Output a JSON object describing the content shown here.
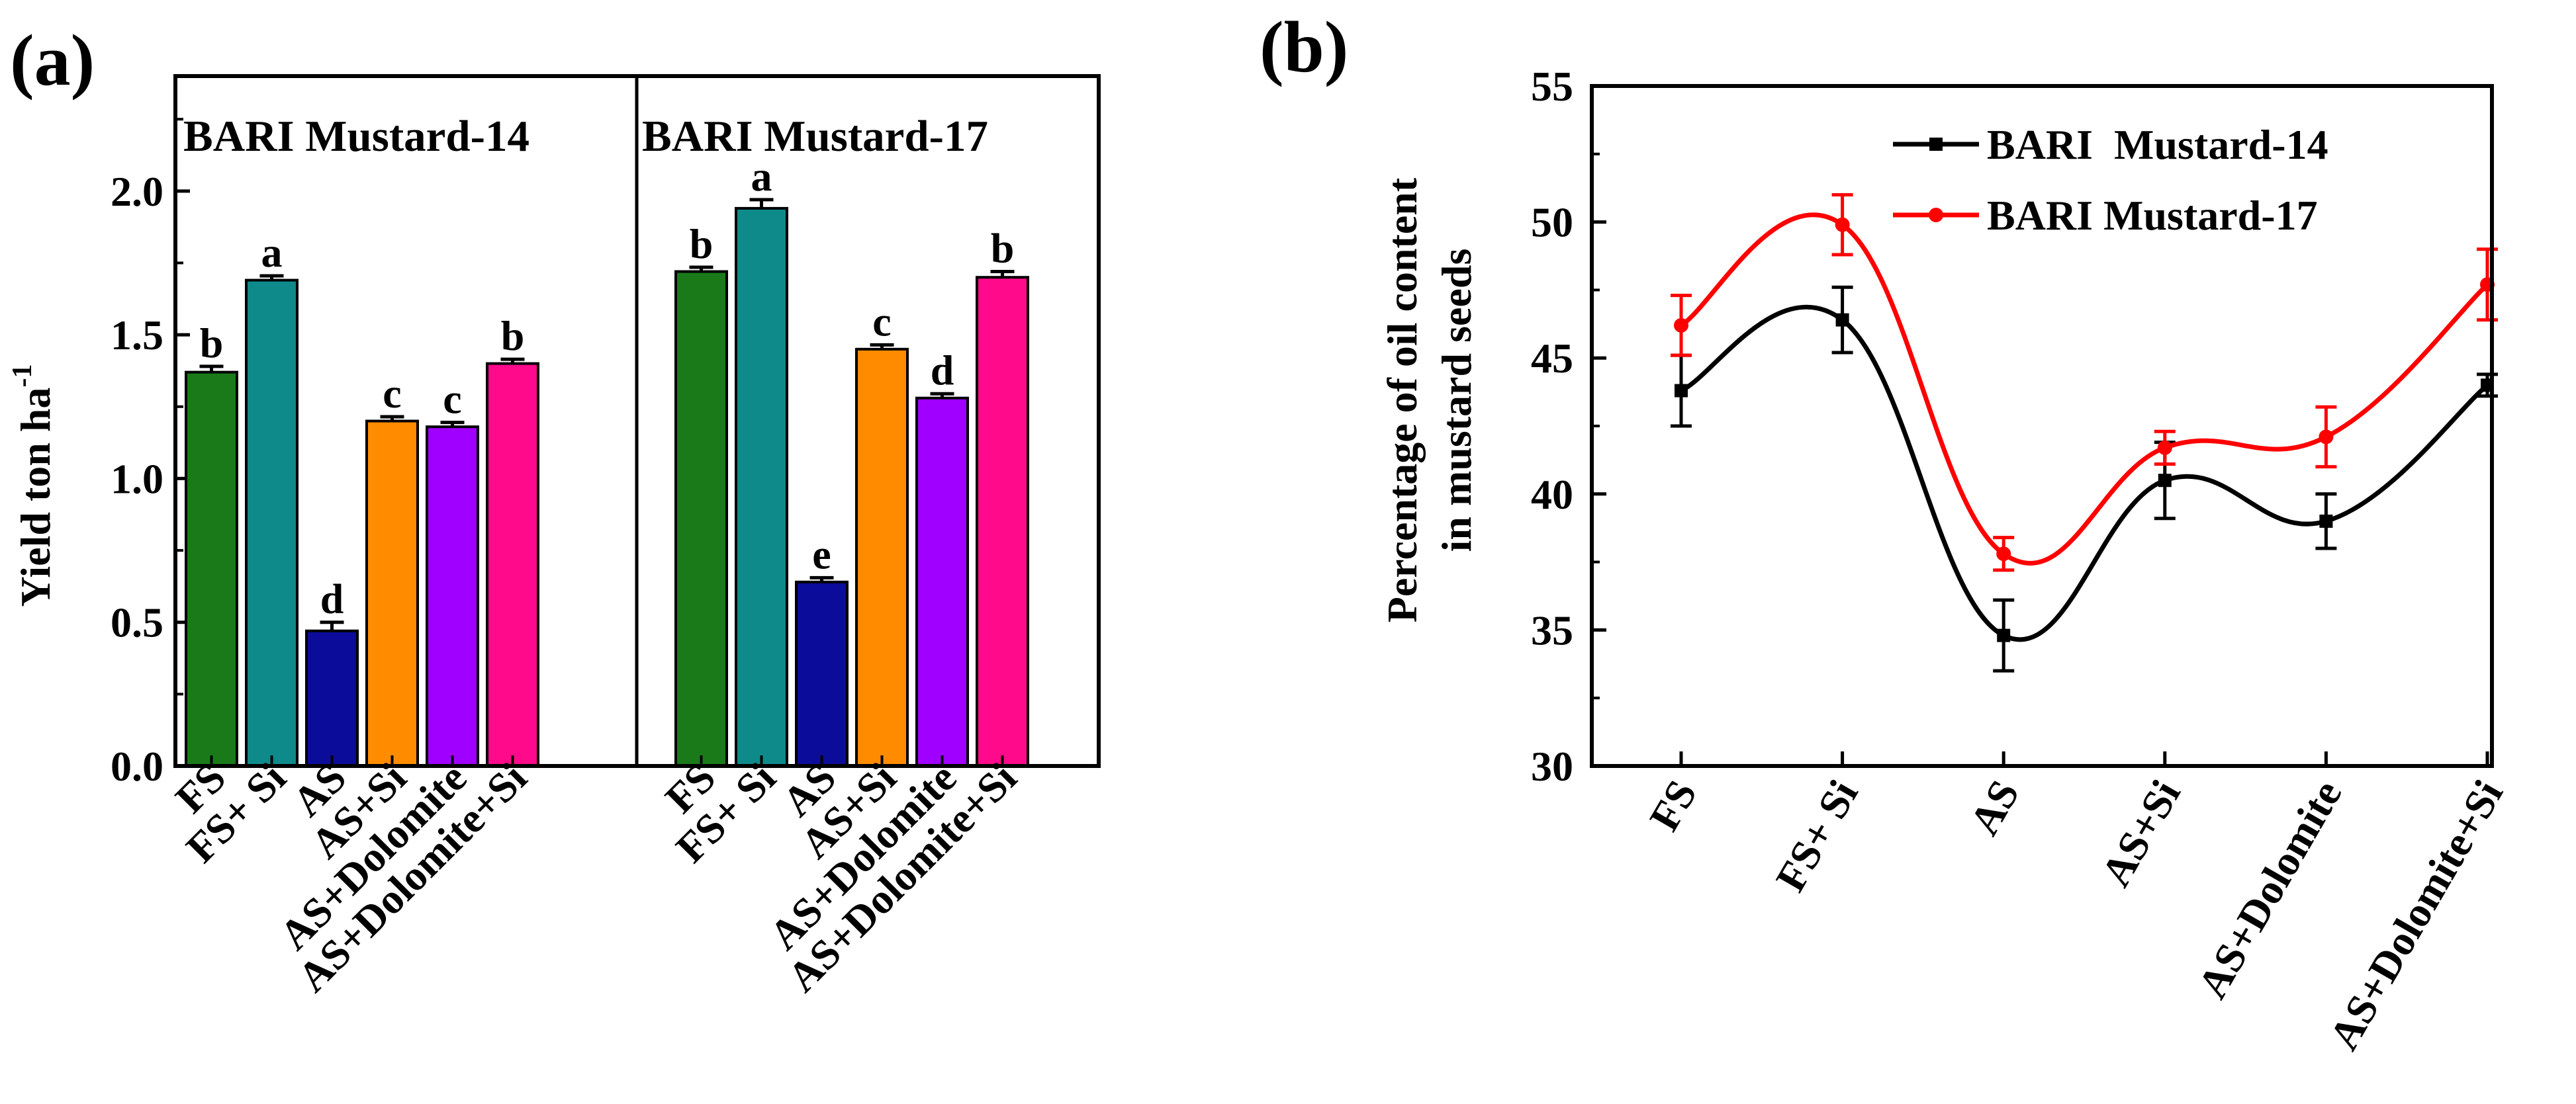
{
  "chart_data": [
    {
      "panel_label": "(a)",
      "type": "bar",
      "ylabel": "Yield ton ha",
      "ylabel_superscript": "-1",
      "ylim": [
        0,
        2.4
      ],
      "yticks": [
        "0.0",
        "0.5",
        "1.0",
        "1.5",
        "2.0"
      ],
      "categories": [
        "FS",
        "FS+ Si",
        "AS",
        "AS+Si",
        "AS+Dolomite",
        "AS+Dolomite+Si"
      ],
      "bar_colors": [
        "#1a7a1a",
        "#0f8a8a",
        "#0c0c9a",
        "#ff8c00",
        "#a000ff",
        "#ff0a8a"
      ],
      "groups": [
        {
          "name": "BARI Mustard-14",
          "values": [
            1.37,
            1.69,
            0.47,
            1.2,
            1.18,
            1.4
          ],
          "errors": [
            0.02,
            0.015,
            0.03,
            0.015,
            0.015,
            0.015
          ],
          "letters": [
            "b",
            "a",
            "d",
            "c",
            "c",
            "b"
          ]
        },
        {
          "name": "BARI Mustard-17",
          "values": [
            1.72,
            1.94,
            0.64,
            1.45,
            1.28,
            1.7
          ],
          "errors": [
            0.015,
            0.03,
            0.015,
            0.015,
            0.015,
            0.02
          ],
          "letters": [
            "b",
            "a",
            "e",
            "c",
            "d",
            "b"
          ]
        }
      ]
    },
    {
      "panel_label": "(b)",
      "type": "line",
      "ylabel_lines": [
        "Percentage of oil content",
        "in mustard seeds"
      ],
      "ylim": [
        30,
        55
      ],
      "yticks": [
        "30",
        "35",
        "40",
        "45",
        "50",
        "55"
      ],
      "categories": [
        "FS",
        "FS+ Si",
        "AS",
        "AS+Si",
        "AS+Dolomite",
        "AS+Dolomite+Si"
      ],
      "series": [
        {
          "name": "BARI  Mustard-14",
          "color": "#000000",
          "marker": "square",
          "values": [
            43.8,
            46.4,
            34.8,
            40.5,
            39.0,
            44.0
          ],
          "errors": [
            1.3,
            1.2,
            1.3,
            1.4,
            1.0,
            0.4
          ]
        },
        {
          "name": "BARI Mustard-17",
          "color": "#ff0000",
          "marker": "circle",
          "values": [
            46.2,
            49.9,
            37.8,
            41.7,
            42.1,
            47.7
          ],
          "errors": [
            1.1,
            1.1,
            0.6,
            0.6,
            1.1,
            1.3
          ]
        }
      ]
    }
  ]
}
